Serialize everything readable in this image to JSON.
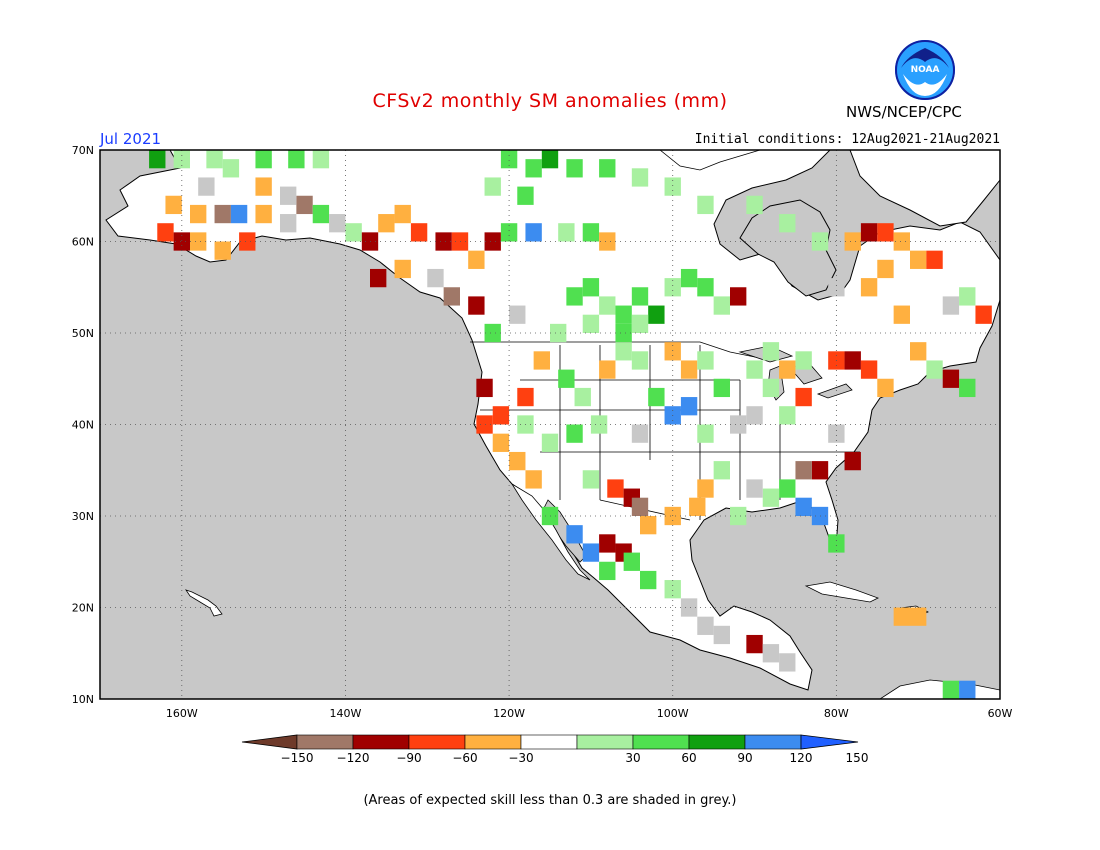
{
  "header": {
    "title": "CFSv2 monthly SM anomalies (mm)",
    "agency": "NWS/NCEP/CPC",
    "logo_text": "NOAA",
    "valid_month": "Jul 2021",
    "initial_conditions": "Initial conditions: 12Aug2021-21Aug2021"
  },
  "map": {
    "lon_range": [
      -170,
      -60
    ],
    "lat_range": [
      10,
      70
    ],
    "lon_ticks": [
      {
        "value": -160,
        "label": "160W"
      },
      {
        "value": -140,
        "label": "140W"
      },
      {
        "value": -120,
        "label": "120W"
      },
      {
        "value": -100,
        "label": "100W"
      },
      {
        "value": -80,
        "label": "80W"
      },
      {
        "value": -60,
        "label": "60W"
      }
    ],
    "lat_ticks": [
      {
        "value": 10,
        "label": "10N"
      },
      {
        "value": 20,
        "label": "20N"
      },
      {
        "value": 30,
        "label": "30N"
      },
      {
        "value": 40,
        "label": "40N"
      },
      {
        "value": 50,
        "label": "50N"
      },
      {
        "value": 60,
        "label": "60N"
      },
      {
        "value": 70,
        "label": "70N"
      }
    ],
    "grid": true,
    "ocean_color": "#c8c8c8",
    "land_color": "#ffffff"
  },
  "legend": {
    "labels": [
      "-150",
      "-120",
      "-90",
      "-60",
      "-30",
      "30",
      "60",
      "90",
      "120",
      "150"
    ],
    "colors": [
      "#6e3a2a",
      "#a07868",
      "#a00000",
      "#ff4010",
      "#ffb040",
      "#ffffff",
      "#a8f0a0",
      "#50e050",
      "#10a010",
      "#3c8cf0",
      "#2060ff"
    ]
  },
  "footnote": "(Areas of expected skill less than 0.3 are shaded in grey.)"
}
